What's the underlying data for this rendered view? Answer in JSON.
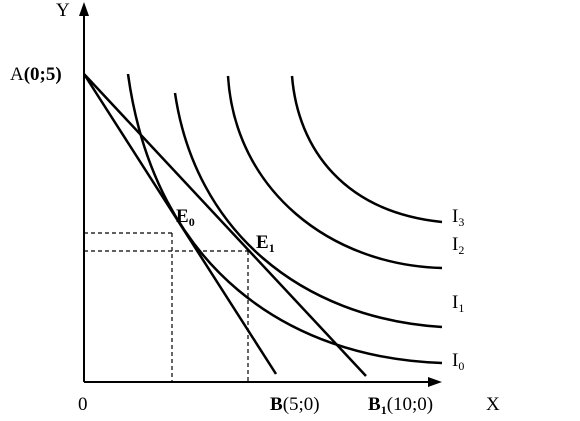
{
  "axes": {
    "y_label": "Y",
    "x_label": "X",
    "origin_label": "0"
  },
  "points": {
    "A": {
      "name": "A",
      "coords": "(0;5)"
    },
    "B": {
      "name": "B",
      "coords": "(5;0)"
    },
    "B1": {
      "name": "B",
      "sub": "1",
      "coords": "(10;0)"
    },
    "E0": {
      "name": "E",
      "sub": "0"
    },
    "E1": {
      "name": "E",
      "sub": "1"
    }
  },
  "curves": [
    {
      "name": "I",
      "sub": "3"
    },
    {
      "name": "I",
      "sub": "2"
    },
    {
      "name": "I",
      "sub": "1"
    },
    {
      "name": "I",
      "sub": "0"
    }
  ],
  "colors": {
    "ink": "#000000",
    "background": "#ffffff"
  }
}
